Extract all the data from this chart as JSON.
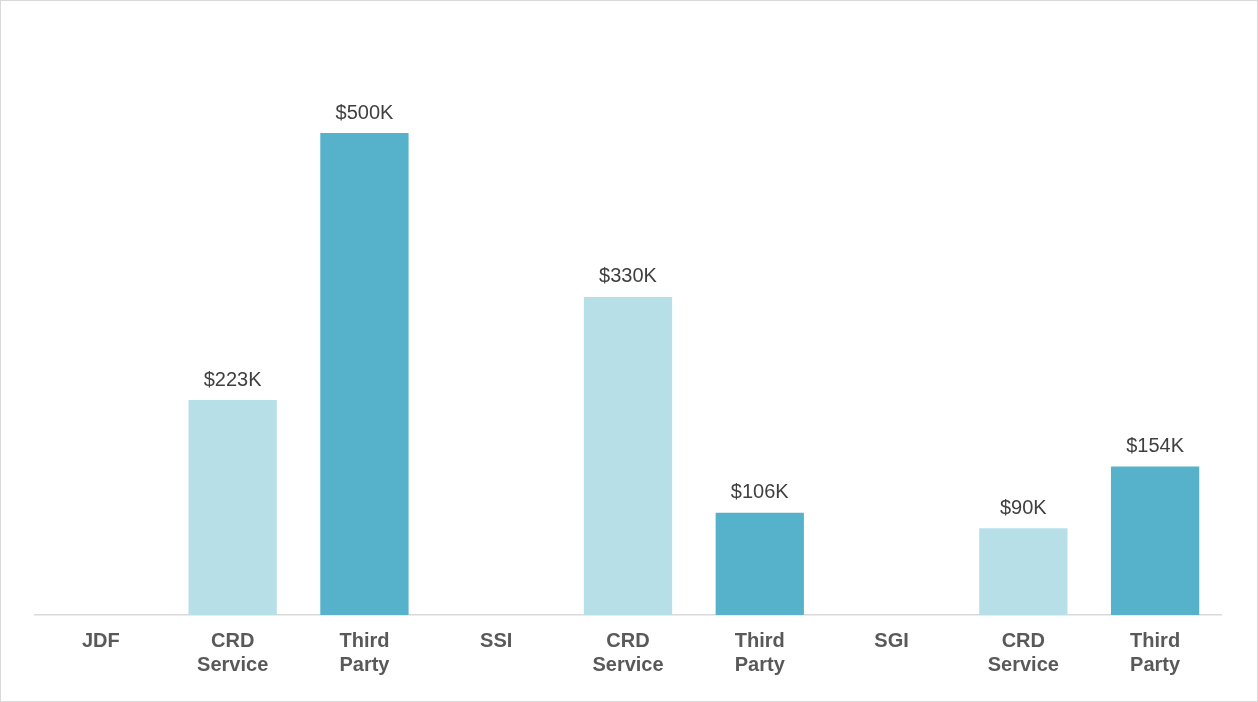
{
  "chart_data": {
    "type": "bar",
    "categories": [
      "JDF",
      "CRD Service",
      "Third Party",
      "SSI",
      "CRD Service",
      "Third Party",
      "SGI",
      "CRD Service",
      "Third Party"
    ],
    "values": [
      null,
      223,
      500,
      null,
      330,
      106,
      null,
      90,
      154
    ],
    "colors": [
      null,
      "#b7dfe8",
      "#56b1cb",
      null,
      "#b7dfe8",
      "#56b1cb",
      null,
      "#b7dfe8",
      "#56b1cb"
    ],
    "value_labels": [
      null,
      "$223K",
      "$500K",
      null,
      "$330K",
      "$106K",
      null,
      "$90K",
      "$154K"
    ],
    "grid": false,
    "legend": false,
    "tick_labels": "x"
  }
}
